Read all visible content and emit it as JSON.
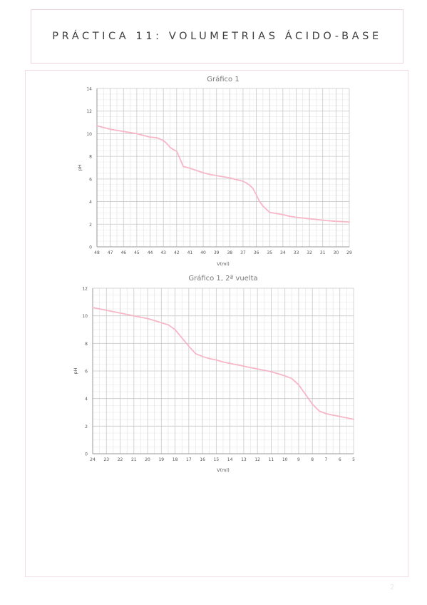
{
  "document": {
    "title": "PRÁCTICA 11: VOLUMETRIAS ÁCIDO-BASE",
    "page_number": "2"
  },
  "colors": {
    "line": "#f7b6c7",
    "grid": "#cfcfcf",
    "frame": "#ecd3d8",
    "text": "#555555"
  },
  "chart_data": [
    {
      "type": "line",
      "title": "Gráfico 1",
      "xlabel": "V(ml)",
      "ylabel": "pH",
      "ylim": [
        0,
        14
      ],
      "yticks": [
        0,
        2,
        4,
        6,
        8,
        10,
        12,
        14
      ],
      "ytick_labels": [
        "0",
        "2",
        "4",
        "6",
        "8",
        "10",
        "12",
        "14"
      ],
      "categories": [
        "48",
        "47",
        "46",
        "45",
        "44",
        "43",
        "42",
        "41",
        "40",
        "39",
        "38",
        "37",
        "36",
        "35",
        "34",
        "33",
        "32",
        "31",
        "30",
        "29"
      ],
      "x_tick_labels": [
        "48",
        "47",
        "46",
        "45",
        "44",
        "43",
        "42",
        "41",
        "40",
        "39",
        "38",
        "37",
        "36",
        "35",
        "34",
        "33",
        "32",
        "31",
        "30",
        "29"
      ],
      "grid": true,
      "series": [
        {
          "x": [
            48,
            47.5,
            47,
            46.5,
            46,
            45.5,
            45,
            44.5,
            44,
            43.5,
            43,
            42.75,
            42.5,
            42.25,
            42,
            41.75,
            41.5,
            41,
            40.5,
            40,
            39.5,
            39,
            38.5,
            38,
            37.5,
            37,
            36.75,
            36.5,
            36.25,
            36,
            35.75,
            35.5,
            35,
            34.5,
            34,
            33.5,
            33,
            32.5,
            32,
            31.5,
            31,
            30.5,
            30,
            29.5,
            29
          ],
          "values": [
            10.7,
            10.55,
            10.4,
            10.3,
            10.2,
            10.1,
            10.0,
            9.85,
            9.7,
            9.65,
            9.4,
            9.15,
            8.8,
            8.6,
            8.45,
            7.8,
            7.1,
            6.95,
            6.75,
            6.55,
            6.4,
            6.3,
            6.2,
            6.1,
            5.95,
            5.8,
            5.65,
            5.45,
            5.15,
            4.6,
            4.0,
            3.6,
            3.05,
            2.95,
            2.85,
            2.7,
            2.62,
            2.55,
            2.48,
            2.42,
            2.36,
            2.3,
            2.26,
            2.23,
            2.2
          ]
        }
      ]
    },
    {
      "type": "line",
      "title": "Gráfico 1, 2ª vuelta",
      "xlabel": "V(ml)",
      "ylabel": "pH",
      "ylim": [
        0,
        12
      ],
      "yticks": [
        0,
        2,
        4,
        6,
        8,
        10,
        12
      ],
      "ytick_labels": [
        "0",
        "2",
        "4",
        "6",
        "8",
        "10",
        "12"
      ],
      "categories": [
        "24",
        "23",
        "22",
        "21",
        "20",
        "19",
        "18",
        "17",
        "16",
        "15",
        "14",
        "13",
        "12",
        "11",
        "10",
        "9",
        "8",
        "7",
        "6",
        "5"
      ],
      "x_tick_labels": [
        "24",
        "23",
        "22",
        "21",
        "20",
        "19",
        "18",
        "17",
        "16",
        "15",
        "14",
        "13",
        "12",
        "11",
        "10",
        "9",
        "8",
        "7",
        "6",
        "5"
      ],
      "grid": true,
      "series": [
        {
          "x": [
            24,
            23.5,
            23,
            22.5,
            22,
            21.5,
            21,
            20.5,
            20,
            19.5,
            19,
            18.5,
            18,
            17.5,
            17,
            16.5,
            16,
            15.5,
            15,
            14.5,
            14,
            13.5,
            13,
            12.5,
            12,
            11.5,
            11,
            10.5,
            10,
            9.5,
            9,
            8.5,
            8,
            7.5,
            7,
            6.5,
            6,
            5.5,
            5
          ],
          "values": [
            10.6,
            10.5,
            10.4,
            10.3,
            10.2,
            10.1,
            10.0,
            9.9,
            9.8,
            9.65,
            9.5,
            9.35,
            9.0,
            8.4,
            7.8,
            7.25,
            7.05,
            6.9,
            6.8,
            6.65,
            6.55,
            6.45,
            6.35,
            6.25,
            6.15,
            6.05,
            5.95,
            5.8,
            5.65,
            5.45,
            5.0,
            4.3,
            3.6,
            3.1,
            2.9,
            2.8,
            2.7,
            2.6,
            2.5
          ]
        }
      ]
    }
  ]
}
